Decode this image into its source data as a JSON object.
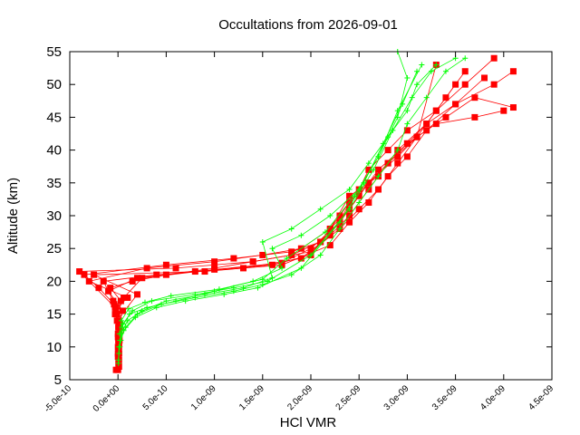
{
  "chart_data": {
    "type": "line",
    "title": "Occultations from 2026-09-01",
    "xlabel": "HCl VMR",
    "ylabel": "Altitude (km)",
    "xlim": [
      -5e-10,
      4.5e-09
    ],
    "ylim": [
      5,
      55
    ],
    "x_ticks": [
      "-5.0e-10",
      "0.0e+00",
      "5.0e-10",
      "1.0e-09",
      "1.5e-09",
      "2.0e-09",
      "2.5e-09",
      "3.0e-09",
      "3.5e-09",
      "4.0e-09",
      "4.5e-09"
    ],
    "x_tick_values": [
      -5e-10,
      0,
      5e-10,
      1e-09,
      1.5e-09,
      2e-09,
      2.5e-09,
      3e-09,
      3.5e-09,
      4e-09,
      4.5e-09
    ],
    "y_ticks": [
      "5",
      "10",
      "15",
      "20",
      "25",
      "30",
      "35",
      "40",
      "45",
      "50",
      "55"
    ],
    "y_tick_values": [
      5,
      10,
      15,
      20,
      25,
      30,
      35,
      40,
      45,
      50,
      55
    ],
    "grid": false,
    "series": [
      {
        "color": "#ff0000",
        "marker": "square",
        "profiles": [
          {
            "x": [
              0.0,
              1e-11,
              5e-12,
              2e-11,
              -3e-11,
              3e-11,
              -8e-11,
              1.5e-10,
              5e-10,
              1e-09,
              1.4e-09,
              1.8e-09,
              2.1e-09,
              2.3e-09,
              2.5e-09,
              2.6e-09,
              2.8e-09,
              3e-09,
              3.3e-09,
              3.6e-09,
              3.9e-09
            ],
            "y": [
              6.5,
              9,
              11,
              13,
              15,
              17,
              19,
              20,
              21,
              22,
              23,
              24,
              26,
              30,
              34,
              37,
              40,
              43,
              46,
              50,
              54
            ]
          },
          {
            "x": [
              1e-11,
              5e-12,
              1.5e-11,
              1e-11,
              -4e-11,
              -2e-10,
              -3.5e-10,
              5e-10,
              1.2e-09,
              1.8e-09,
              2.1e-09,
              2.3e-09,
              2.4e-09,
              2.6e-09,
              2.8e-09,
              3e-09,
              3.2e-09,
              3.5e-09,
              3.9e-09,
              4.1e-09
            ],
            "y": [
              7,
              9.5,
              12,
              14,
              16.5,
              19,
              21,
              22.5,
              23.5,
              24.5,
              26,
              29,
              32,
              35,
              38,
              41,
              44,
              47,
              50,
              52
            ]
          },
          {
            "x": [
              -2e-11,
              0.0,
              1e-11,
              5e-12,
              5e-11,
              -1e-10,
              2e-10,
              8e-10,
              1.6e-09,
              2e-09,
              2.2e-09,
              2.4e-09,
              2.6e-09,
              2.9e-09,
              3.1e-09,
              3.4e-09,
              3.7e-09,
              4.1e-09
            ],
            "y": [
              6.5,
              8.5,
              10.5,
              13,
              15.5,
              18.5,
              20.5,
              21.5,
              22.5,
              24,
              28,
              31,
              35,
              39,
              42,
              45,
              48,
              46.5
            ]
          },
          {
            "x": [
              5e-12,
              1e-11,
              0.0,
              1.2e-11,
              -2e-11,
              1e-10,
              -3e-10,
              3e-10,
              1e-09,
              1.5e-09,
              1.9e-09,
              2.2e-09,
              2.4e-09,
              2.7e-09,
              2.9e-09,
              3.2e-09,
              3.4e-09,
              3.6e-09
            ],
            "y": [
              7.5,
              9,
              11.5,
              13.5,
              15.8,
              17.5,
              20,
              22,
              23,
              24,
              25,
              28,
              33,
              36,
              40,
              44,
              48,
              52
            ]
          },
          {
            "x": [
              1e-11,
              0.0,
              8e-12,
              -1e-11,
              6e-11,
              2.5e-10,
              1e-09,
              1.7e-09,
              2e-09,
              2.3e-09,
              2.5e-09,
              2.7e-09,
              3e-09,
              3.3e-09,
              3.7e-09,
              4e-09
            ],
            "y": [
              8,
              10,
              12,
              15,
              17.5,
              20.5,
              21.8,
              22.8,
              25,
              29,
              33,
              37,
              41,
              44,
              45,
              46
            ]
          },
          {
            "x": [
              0.0,
              1.5e-11,
              5e-12,
              -5e-11,
              -1.5e-10,
              4e-10,
              1.3e-09,
              1.9e-09,
              2.2e-09,
              2.4e-09,
              2.6e-09,
              2.8e-09,
              3.1e-09,
              3.3e-09,
              3.5e-09
            ],
            "y": [
              9,
              11,
              13,
              17,
              20,
              21,
              22,
              23.5,
              27,
              30,
              34,
              38,
              42,
              46,
              50
            ]
          },
          {
            "x": [
              1e-11,
              0.0,
              -3e-11,
              -4e-10,
              6e-10,
              1.4e-09,
              2e-09,
              2.3e-09,
              2.5e-09,
              2.7e-09,
              2.9e-09,
              3.1e-09,
              3.3e-09
            ],
            "y": [
              10,
              12,
              16,
              21.5,
              22,
              23,
              24.5,
              28,
              31,
              34,
              38,
              42,
              53
            ]
          },
          {
            "x": [
              5e-12,
              -1e-11,
              2e-10,
              -2.5e-10,
              9e-10,
              1.7e-09,
              2.2e-09,
              2.4e-09,
              2.6e-09,
              2.8e-09,
              3e-09,
              3.2e-09,
              3.5e-09,
              3.8e-09
            ],
            "y": [
              11,
              14,
              18,
              21,
              21.5,
              22.5,
              25.5,
              29,
              32,
              36,
              39,
              43,
              47,
              51
            ]
          }
        ]
      },
      {
        "color": "#00ff00",
        "marker": "plus",
        "profiles": [
          {
            "x": [
              5e-12,
              2e-11,
              8e-11,
              2e-10,
              4.5e-10,
              8e-10,
              1.2e-09,
              1.5e-09,
              1.8e-09,
              2.1e-09,
              2.3e-09,
              2.5e-09,
              2.7e-09,
              2.9e-09,
              3e-09,
              3.2e-09,
              3.4e-09,
              3.6e-09
            ],
            "y": [
              8,
              11,
              13,
              15,
              16.5,
              17.5,
              18.5,
              19.5,
              21,
              24,
              28,
              32,
              36,
              40,
              44,
              48,
              52,
              54
            ]
          },
          {
            "x": [
              1e-11,
              3e-11,
              1e-10,
              2.5e-10,
              5e-10,
              9e-10,
              1.3e-09,
              1.6e-09,
              1.5e-09,
              1.8e-09,
              2.1e-09,
              2.4e-09,
              2.6e-09,
              2.8e-09,
              3e-09,
              3.1e-09,
              3.3e-09
            ],
            "y": [
              9,
              12,
              14,
              15.5,
              17,
              18,
              19,
              20.5,
              26,
              28,
              31,
              34,
              38,
              42,
              46,
              50,
              53
            ]
          },
          {
            "x": [
              2e-11,
              4e-11,
              1.2e-10,
              3e-10,
              6e-10,
              1e-09,
              1.4e-09,
              1.7e-09,
              1.6e-09,
              1.9e-09,
              2.2e-09,
              2.5e-09,
              2.7e-09,
              2.9e-09,
              3e-09,
              2.9e-09
            ],
            "y": [
              10,
              13,
              15,
              16,
              17,
              18.5,
              20,
              22,
              25,
              27,
              30,
              34,
              39,
              45,
              51,
              55
            ]
          },
          {
            "x": [
              5e-12,
              1e-11,
              6e-11,
              1.8e-10,
              4e-10,
              7e-10,
              1.1e-09,
              1.45e-09,
              1.9e-09,
              2.3e-09,
              2.55e-09,
              2.75e-09,
              2.95e-09,
              3.1e-09
            ],
            "y": [
              7.5,
              10,
              12.5,
              14.5,
              16,
              17,
              18,
              19,
              22,
              29,
              35,
              41,
              47,
              52
            ]
          },
          {
            "x": [
              3e-11,
              5e-11,
              1.5e-10,
              3.5e-10,
              8e-10,
              1.2e-09,
              1.55e-09,
              2e-09,
              2.4e-09,
              2.65e-09,
              2.85e-09,
              3.05e-09,
              3.25e-09,
              3.5e-09
            ],
            "y": [
              11,
              13.5,
              15.5,
              17,
              18,
              19,
              20,
              24,
              31,
              37,
              43,
              48,
              52,
              54
            ]
          },
          {
            "x": [
              1.5e-11,
              3.5e-11,
              1.1e-10,
              2.8e-10,
              5.5e-10,
              1.05e-09,
              1.5e-09,
              1.75e-09,
              2.15e-09,
              2.45e-09,
              2.7e-09,
              2.9e-09,
              3.15e-09
            ],
            "y": [
              12,
              14,
              15.8,
              16.8,
              17.8,
              18.8,
              20.3,
              23.5,
              27.5,
              33,
              39,
              46,
              53
            ]
          }
        ]
      }
    ]
  }
}
